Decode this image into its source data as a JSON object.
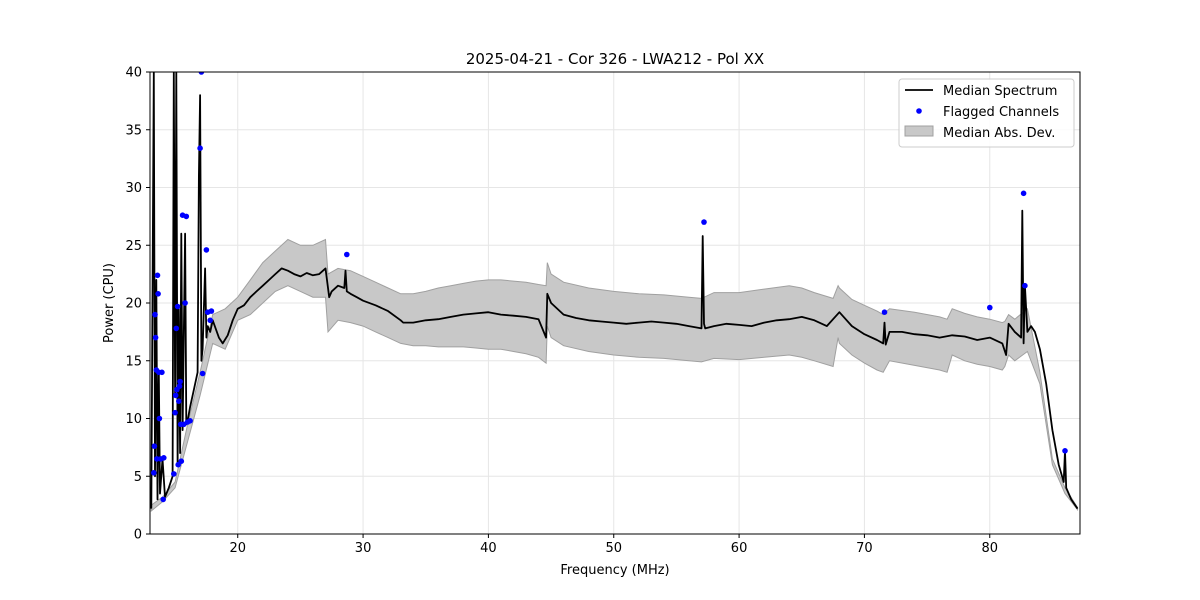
{
  "chart_data": {
    "type": "line",
    "title": "2025-04-21 - Cor 326 - LWA212 - Pol XX",
    "xlabel": "Frequency (MHz)",
    "ylabel": "Power (CPU)",
    "xlim": [
      13.0,
      87.2
    ],
    "ylim": [
      0,
      40
    ],
    "xticks": [
      20,
      30,
      40,
      50,
      60,
      70,
      80
    ],
    "yticks": [
      0,
      5,
      10,
      15,
      20,
      25,
      30,
      35,
      40
    ],
    "grid": true,
    "legend_position": "top-right",
    "legend": [
      {
        "label": "Median Spectrum",
        "kind": "line",
        "color": "#000000"
      },
      {
        "label": "Flagged Channels",
        "kind": "marker",
        "color": "#0000ff"
      },
      {
        "label": "Median Abs. Dev.",
        "kind": "patch",
        "color": "#c8c8c8"
      }
    ],
    "series": [
      {
        "name": "Median Spectrum",
        "color": "#000000",
        "x": [
          13.1,
          13.3,
          13.4,
          13.5,
          13.6,
          13.7,
          13.8,
          14.0,
          14.2,
          14.5,
          14.8,
          14.9,
          15.0,
          15.1,
          15.2,
          15.3,
          15.4,
          15.5,
          15.6,
          15.8,
          15.9,
          16.0,
          16.2,
          16.5,
          16.8,
          16.9,
          17.0,
          17.1,
          17.2,
          17.4,
          17.5,
          17.6,
          17.8,
          18.0,
          18.5,
          18.8,
          19.2,
          19.6,
          20.0,
          20.5,
          21.0,
          21.5,
          22.0,
          22.5,
          23.0,
          23.5,
          24.0,
          24.5,
          25.0,
          25.5,
          26.0,
          26.5,
          27.0,
          27.3,
          27.5,
          28.0,
          28.5,
          28.6,
          28.7,
          29.0,
          29.5,
          30.0,
          31.0,
          32.0,
          33.0,
          33.2,
          34.0,
          35.0,
          36.0,
          37.0,
          38.0,
          39.0,
          40.0,
          41.0,
          42.0,
          43.0,
          44.0,
          44.6,
          44.7,
          45.0,
          46.0,
          47.0,
          48.0,
          49.0,
          50.0,
          51.0,
          52.0,
          53.0,
          54.0,
          55.0,
          56.0,
          57.0,
          57.1,
          57.2,
          57.3,
          58.0,
          59.0,
          60.0,
          61.0,
          62.0,
          63.0,
          64.0,
          65.0,
          66.0,
          67.0,
          68.0,
          69.0,
          70.0,
          71.0,
          71.5,
          71.6,
          71.7,
          72.0,
          73.0,
          74.0,
          75.0,
          76.0,
          77.0,
          78.0,
          79.0,
          80.0,
          81.0,
          81.3,
          81.5,
          82.0,
          82.5,
          82.6,
          82.7,
          82.8,
          83.0,
          83.3,
          83.6,
          84.0,
          84.5,
          85.0,
          85.5,
          85.9,
          86.0,
          86.1,
          86.5,
          87.0
        ],
        "y": [
          2.2,
          40.0,
          5.0,
          22.0,
          3.0,
          14.0,
          3.5,
          6.5,
          3.2,
          4.0,
          5.0,
          40.0,
          12.0,
          40.0,
          6.0,
          19.5,
          7.0,
          26.0,
          9.0,
          26.0,
          9.5,
          9.8,
          11.0,
          12.5,
          14.0,
          31.0,
          38.0,
          15.0,
          16.0,
          23.0,
          17.0,
          18.0,
          17.5,
          18.5,
          17.0,
          16.5,
          17.2,
          18.5,
          19.5,
          19.8,
          20.5,
          21.0,
          21.5,
          22.0,
          22.5,
          23.0,
          22.8,
          22.5,
          22.3,
          22.6,
          22.4,
          22.5,
          23.0,
          20.5,
          21.0,
          21.5,
          21.3,
          22.8,
          21.0,
          20.8,
          20.5,
          20.2,
          19.8,
          19.3,
          18.5,
          18.3,
          18.3,
          18.5,
          18.6,
          18.8,
          19.0,
          19.1,
          19.2,
          19.0,
          18.9,
          18.8,
          18.6,
          17.0,
          20.8,
          20.0,
          19.0,
          18.7,
          18.5,
          18.4,
          18.3,
          18.2,
          18.3,
          18.4,
          18.3,
          18.2,
          18.0,
          17.8,
          25.8,
          18.2,
          17.8,
          18.0,
          18.2,
          18.1,
          18.0,
          18.3,
          18.5,
          18.6,
          18.8,
          18.5,
          18.0,
          19.2,
          18.0,
          17.3,
          16.8,
          16.5,
          18.3,
          16.4,
          17.5,
          17.5,
          17.3,
          17.2,
          17.0,
          17.2,
          17.1,
          16.8,
          17.0,
          16.5,
          15.5,
          18.2,
          17.5,
          17.0,
          28.0,
          16.5,
          21.5,
          17.5,
          18.0,
          17.5,
          16.0,
          13.0,
          9.0,
          6.0,
          4.5,
          7.2,
          4.0,
          3.0,
          2.2
        ]
      }
    ],
    "band": {
      "name": "Median Abs. Dev.",
      "x": [
        13.1,
        14.0,
        15.0,
        16.0,
        17.0,
        18.0,
        19.0,
        20.0,
        21.0,
        22.0,
        23.0,
        24.0,
        25.0,
        26.0,
        27.0,
        27.2,
        28.0,
        29.0,
        30.0,
        31.0,
        32.0,
        33.0,
        34.0,
        35.0,
        36.0,
        37.0,
        38.0,
        39.0,
        40.0,
        41.0,
        42.0,
        43.0,
        44.0,
        44.6,
        44.7,
        45.0,
        46.0,
        48.0,
        50.0,
        52.0,
        54.0,
        56.0,
        57.0,
        58.0,
        60.0,
        62.0,
        64.0,
        65.0,
        66.0,
        67.5,
        67.9,
        68.0,
        69.0,
        70.0,
        71.0,
        71.5,
        72.0,
        74.0,
        76.0,
        76.6,
        77.0,
        78.0,
        79.0,
        80.0,
        81.0,
        81.2,
        81.5,
        82.0,
        83.0,
        84.0,
        85.0,
        86.0,
        87.0
      ],
      "lower": [
        2.0,
        2.8,
        4.0,
        8.0,
        12.0,
        16.5,
        16.0,
        18.5,
        19.0,
        20.0,
        21.0,
        21.5,
        21.0,
        20.5,
        20.5,
        17.5,
        18.5,
        18.3,
        18.0,
        17.5,
        17.0,
        16.5,
        16.3,
        16.3,
        16.2,
        16.2,
        16.2,
        16.1,
        16.0,
        16.0,
        15.8,
        15.6,
        15.3,
        14.8,
        18.0,
        17.0,
        16.3,
        15.8,
        15.5,
        15.3,
        15.2,
        15.0,
        14.9,
        15.2,
        15.1,
        15.3,
        15.5,
        15.3,
        15.0,
        14.5,
        17.0,
        16.5,
        15.5,
        14.8,
        14.2,
        14.0,
        15.0,
        14.6,
        14.2,
        14.0,
        15.5,
        15.0,
        14.7,
        14.5,
        14.2,
        14.5,
        15.5,
        15.0,
        15.8,
        13.0,
        6.0,
        3.5,
        2.1
      ],
      "upper": [
        2.5,
        3.2,
        4.5,
        9.5,
        14.0,
        19.0,
        19.5,
        20.5,
        22.0,
        23.5,
        24.5,
        25.5,
        25.0,
        25.0,
        25.5,
        22.5,
        23.0,
        22.8,
        22.3,
        21.8,
        21.3,
        20.8,
        20.8,
        21.0,
        21.3,
        21.5,
        21.7,
        21.9,
        22.0,
        22.0,
        21.9,
        21.8,
        21.6,
        21.5,
        23.5,
        22.5,
        21.8,
        21.3,
        21.0,
        20.8,
        20.7,
        20.5,
        20.4,
        20.9,
        20.9,
        21.2,
        21.5,
        21.3,
        20.9,
        20.4,
        21.5,
        21.3,
        20.3,
        19.8,
        19.3,
        19.0,
        19.5,
        19.2,
        18.8,
        18.6,
        19.5,
        19.1,
        18.8,
        18.6,
        18.3,
        18.4,
        19.0,
        18.6,
        19.5,
        14.0,
        6.5,
        4.0,
        2.3
      ]
    },
    "flagged_channels": {
      "name": "Flagged Channels",
      "color": "#0000ff",
      "x": [
        13.3,
        13.35,
        13.4,
        13.45,
        13.5,
        13.55,
        13.6,
        13.65,
        13.7,
        13.75,
        13.85,
        13.95,
        14.05,
        14.1,
        14.9,
        15.0,
        15.05,
        15.1,
        15.15,
        15.2,
        15.25,
        15.3,
        15.35,
        15.4,
        15.45,
        15.5,
        15.6,
        15.7,
        15.8,
        15.9,
        16.0,
        16.2,
        17.0,
        17.1,
        17.2,
        17.5,
        17.6,
        17.8,
        17.9,
        28.7,
        57.2,
        71.6,
        80.0,
        82.7,
        82.8,
        86.0
      ],
      "y": [
        5.3,
        7.6,
        19.0,
        17.0,
        14.2,
        6.5,
        22.4,
        20.8,
        14.0,
        10.0,
        6.5,
        14.0,
        3.0,
        6.6,
        5.2,
        10.5,
        12.0,
        17.8,
        12.5,
        19.7,
        6.0,
        11.5,
        12.8,
        13.2,
        9.5,
        6.3,
        27.6,
        9.5,
        20.0,
        27.5,
        9.7,
        9.8,
        33.4,
        40.0,
        13.9,
        24.6,
        19.2,
        18.5,
        19.3,
        24.2,
        27.0,
        19.2,
        19.6,
        29.5,
        21.5,
        7.2
      ]
    }
  }
}
